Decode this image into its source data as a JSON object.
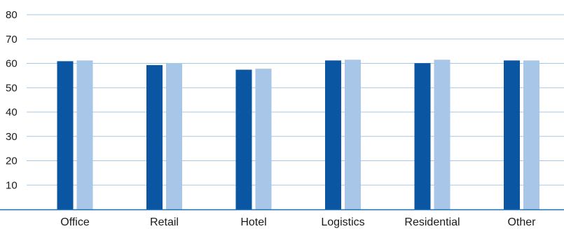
{
  "chart_data": {
    "type": "bar",
    "categories": [
      "Office",
      "Retail",
      "Hotel",
      "Logistics",
      "Residential",
      "Other"
    ],
    "series": [
      {
        "values": [
          60.9,
          59.3,
          57.4,
          61.2,
          60.1,
          61.2
        ],
        "color": "#0a56a2"
      },
      {
        "values": [
          61.2,
          60.0,
          57.8,
          61.5,
          61.5,
          61.2
        ],
        "color": "#a8c6e8"
      }
    ],
    "ylim": [
      0,
      80
    ],
    "yticks": [
      10,
      20,
      30,
      40,
      50,
      60,
      70,
      80
    ],
    "grid": true,
    "grid_color": "#a9c7e6",
    "axis_color": "#1f6fb5",
    "legend": "none",
    "title": "",
    "xlabel": "",
    "ylabel": ""
  }
}
